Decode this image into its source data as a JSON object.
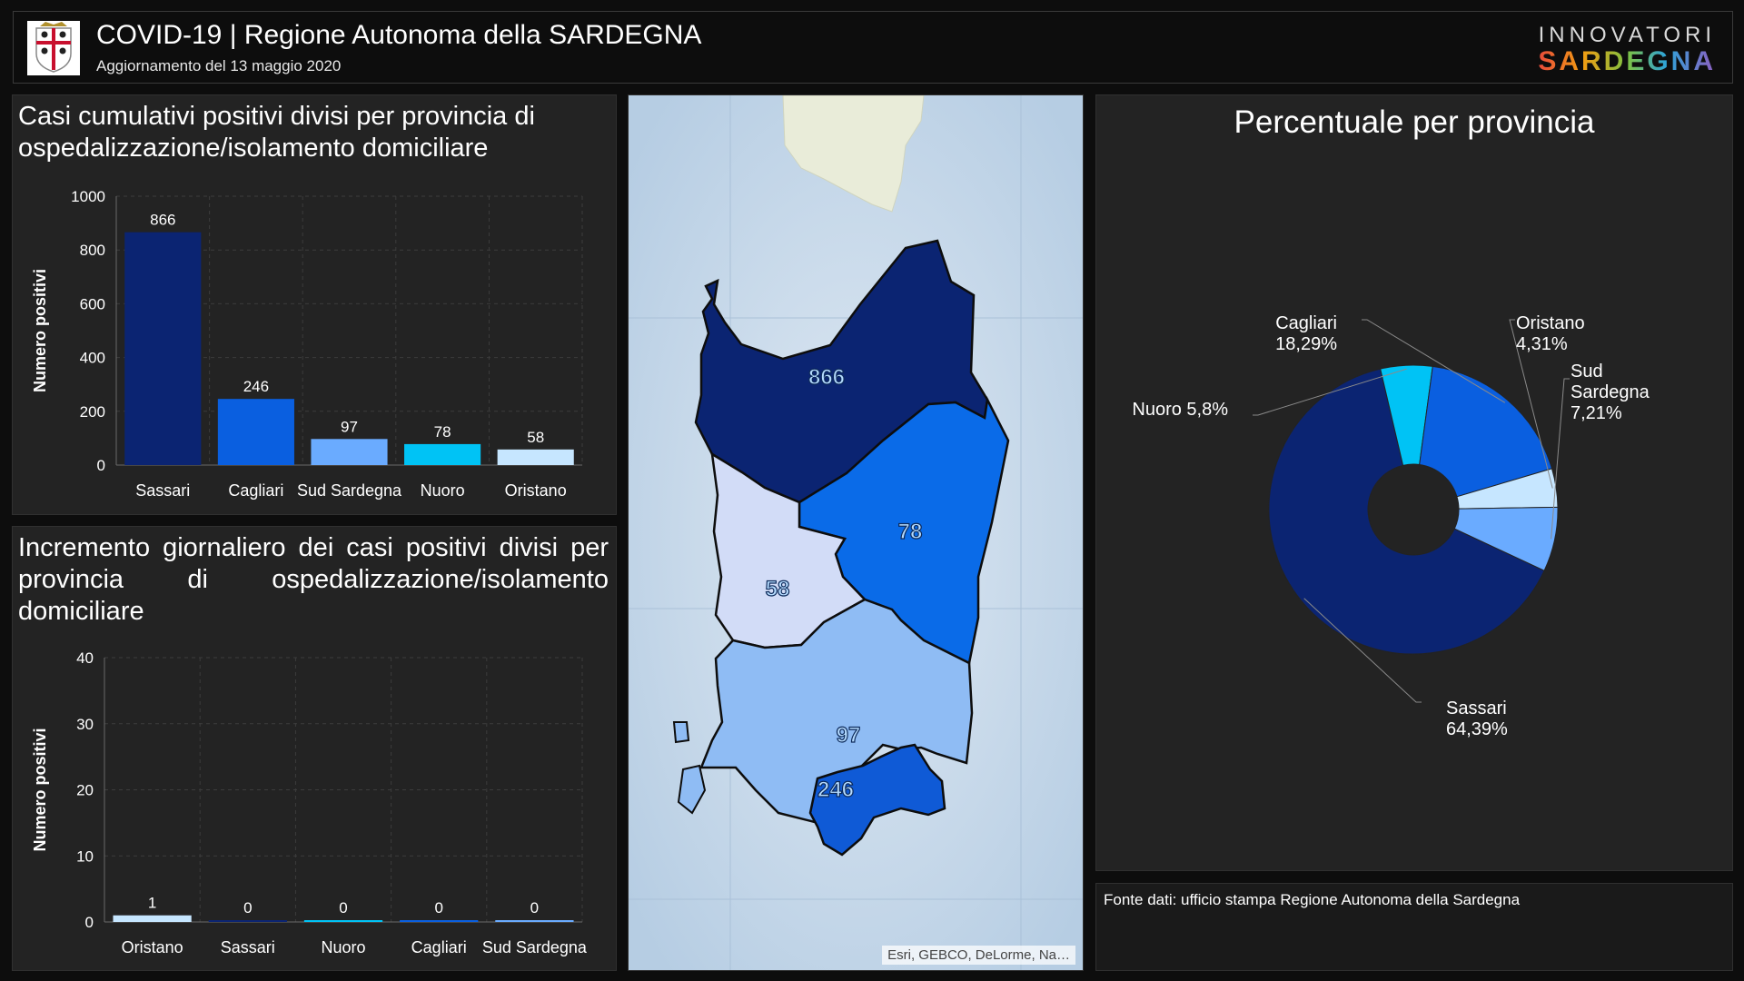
{
  "header": {
    "title": "COVID-19 | Regione Autonoma della SARDEGNA",
    "subtitle": "Aggiornamento del 13 maggio 2020",
    "brand_top": "INNOVATORI",
    "brand_bottom": "SARDEGNA",
    "icon": "sardinia-coat-of-arms"
  },
  "chart1": {
    "title": "Casi cumulativi positivi divisi per provincia di ospedalizzazione/isolamento domiciliare",
    "chart_data": {
      "type": "bar",
      "categories": [
        "Sassari",
        "Cagliari",
        "Sud Sardegna",
        "Nuoro",
        "Oristano"
      ],
      "values": [
        866,
        246,
        97,
        78,
        58
      ],
      "colors": [
        "#0b2472",
        "#0a5fe0",
        "#6aabff",
        "#00c3f5",
        "#c6e6ff"
      ],
      "ylabel": "Numero positivi",
      "ylim": [
        0,
        1000
      ],
      "yticks": [
        "0",
        "200",
        "400",
        "600",
        "800",
        "1000"
      ],
      "grid": true
    }
  },
  "chart2": {
    "title": "Incremento giornaliero dei casi positivi divisi per provincia di ospedalizzazione/isolamento domiciliare",
    "chart_data": {
      "type": "bar",
      "categories": [
        "Oristano",
        "Sassari",
        "Nuoro",
        "Cagliari",
        "Sud Sardegna"
      ],
      "values": [
        1,
        0,
        0,
        0,
        0
      ],
      "colors": [
        "#c6e6ff",
        "#0b2472",
        "#00c3f5",
        "#0a5fe0",
        "#6aabff"
      ],
      "ylabel": "Numero positivi",
      "ylim": [
        0,
        40
      ],
      "yticks": [
        "0",
        "10",
        "20",
        "30",
        "40"
      ],
      "grid": true
    }
  },
  "map": {
    "attribution": "Esri, GEBCO, DeLorme, Na…",
    "labels": {
      "sassari": "866",
      "nuoro": "78",
      "oristano": "58",
      "sud_sardegna": "97",
      "cagliari": "246"
    },
    "colors": {
      "sassari": "#0b2472",
      "nuoro": "#0a6be8",
      "oristano": "#d2dcf7",
      "sud_sardegna": "#8fbcf4",
      "cagliari": "#0f5ad6",
      "sea": "#c5d8ea",
      "corsica": "#e9ecd9"
    }
  },
  "pie": {
    "title": "Percentuale per provincia",
    "chart_data": {
      "type": "pie",
      "slices": [
        {
          "name": "Sassari",
          "percent": 64.39,
          "label_name": "Sassari",
          "label_value": "64,39%",
          "color": "#0b2472"
        },
        {
          "name": "Nuoro",
          "percent": 5.8,
          "label_name": "Nuoro 5,8%",
          "label_value": "",
          "color": "#00c3f5"
        },
        {
          "name": "Cagliari",
          "percent": 18.29,
          "label_name": "Cagliari",
          "label_value": "18,29%",
          "color": "#0a5fe0"
        },
        {
          "name": "Oristano",
          "percent": 4.31,
          "label_name": "Oristano",
          "label_value": "4,31%",
          "color": "#c6e6ff"
        },
        {
          "name": "Sud Sardegna",
          "percent": 7.21,
          "label_name": "Sud\nSardegna",
          "label_value": "7,21%",
          "color": "#6aabff"
        }
      ]
    }
  },
  "source": {
    "text": "Fonte dati: ufficio stampa Regione Autonoma della Sardegna"
  }
}
